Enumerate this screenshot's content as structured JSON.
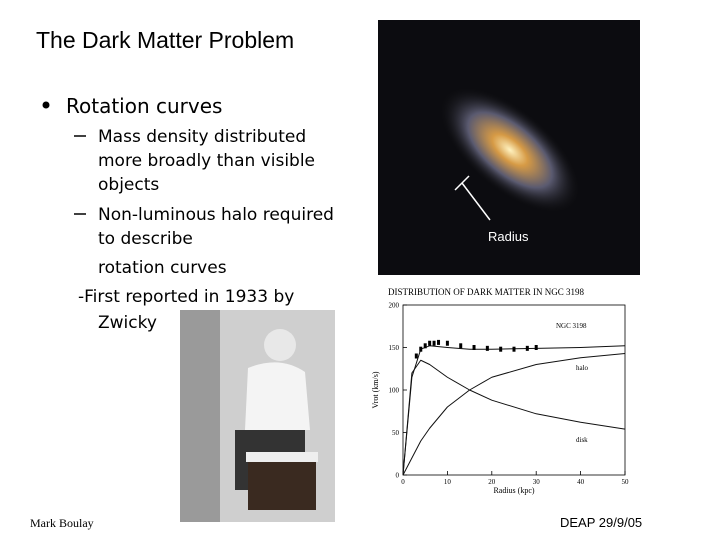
{
  "title": "The Dark Matter Problem",
  "bullets": [
    {
      "text": "Rotation curves",
      "sub": [
        [
          "Mass density distributed",
          "more broadly than visible",
          "objects"
        ],
        [
          "Non-luminous halo required",
          "to describe",
          "rotation curves"
        ]
      ]
    }
  ],
  "note": [
    "-First reported in 1933 by",
    "Zwicky"
  ],
  "galaxy_label": "Radius",
  "footer_left": "Mark Boulay",
  "footer_right": "DEAP 29/9/05",
  "chart_data": {
    "type": "line",
    "title": "DISTRIBUTION OF DARK MATTER IN NGC 3198",
    "xlabel": "Radius (kpc)",
    "ylabel": "Vrot (km/s)",
    "annotations": [
      "NGC 3198"
    ],
    "x": [
      0,
      2,
      4,
      6,
      10,
      15,
      20,
      30,
      40,
      50
    ],
    "series": [
      {
        "color": "#111111",
        "values": [
          0,
          115,
          148,
          152,
          150,
          148,
          148,
          149,
          150,
          152
        ]
      },
      {
        "name": "halo",
        "color": "#111111",
        "values": [
          0,
          20,
          40,
          55,
          80,
          100,
          115,
          130,
          138,
          143
        ]
      },
      {
        "name": "disk",
        "color": "#111111",
        "values": [
          0,
          120,
          135,
          130,
          115,
          100,
          88,
          72,
          62,
          54
        ]
      }
    ],
    "points": {
      "x": [
        3,
        4,
        5,
        6,
        7,
        8,
        10,
        13,
        16,
        19,
        22,
        25,
        28,
        30
      ],
      "values": [
        140,
        148,
        152,
        155,
        155,
        156,
        155,
        152,
        150,
        149,
        148,
        148,
        149,
        150
      ]
    },
    "xlim": [
      0,
      50
    ],
    "ylim": [
      0,
      200
    ],
    "xticks": [
      0,
      10,
      20,
      30,
      40,
      50
    ],
    "yticks": [
      0,
      50,
      100,
      150,
      200
    ]
  }
}
